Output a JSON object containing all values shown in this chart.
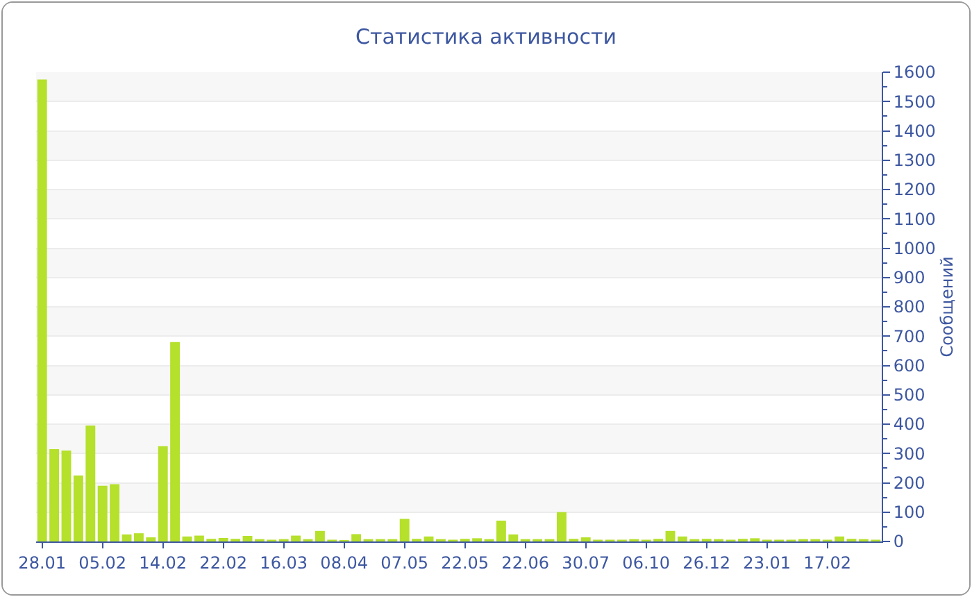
{
  "chart_data": {
    "type": "bar",
    "title": "Статистика активности",
    "ylabel": "Сообщений",
    "categories": [
      "28.01",
      null,
      null,
      null,
      null,
      "05.02",
      null,
      null,
      null,
      null,
      "14.02",
      null,
      null,
      null,
      null,
      "22.02",
      null,
      null,
      null,
      null,
      "16.03",
      null,
      null,
      null,
      null,
      "08.04",
      null,
      null,
      null,
      null,
      "07.05",
      null,
      null,
      null,
      null,
      "22.05",
      null,
      null,
      null,
      null,
      "22.06",
      null,
      null,
      null,
      null,
      "30.07",
      null,
      null,
      null,
      null,
      "06.10",
      null,
      null,
      null,
      null,
      "26.12",
      null,
      null,
      null,
      null,
      "23.01",
      null,
      null,
      null,
      null,
      "17.02",
      null,
      null,
      null,
      null
    ],
    "values": [
      1575,
      315,
      310,
      225,
      395,
      190,
      195,
      24,
      28,
      14,
      325,
      680,
      17,
      20,
      9,
      12,
      9,
      19,
      8,
      6,
      8,
      20,
      8,
      36,
      6,
      5,
      25,
      8,
      8,
      8,
      77,
      9,
      17,
      8,
      6,
      9,
      11,
      8,
      71,
      24,
      8,
      8,
      8,
      100,
      9,
      14,
      6,
      6,
      6,
      8,
      6,
      9,
      36,
      17,
      8,
      9,
      8,
      6,
      9,
      11,
      6,
      6,
      6,
      8,
      8,
      6,
      17,
      9,
      8,
      6
    ],
    "color": "#b5e02b",
    "ylim": [
      0,
      1600
    ],
    "yticks": [
      0,
      100,
      200,
      300,
      400,
      500,
      600,
      700,
      800,
      900,
      1000,
      1100,
      1200,
      1300,
      1400,
      1500,
      1600
    ],
    "grid": true
  }
}
